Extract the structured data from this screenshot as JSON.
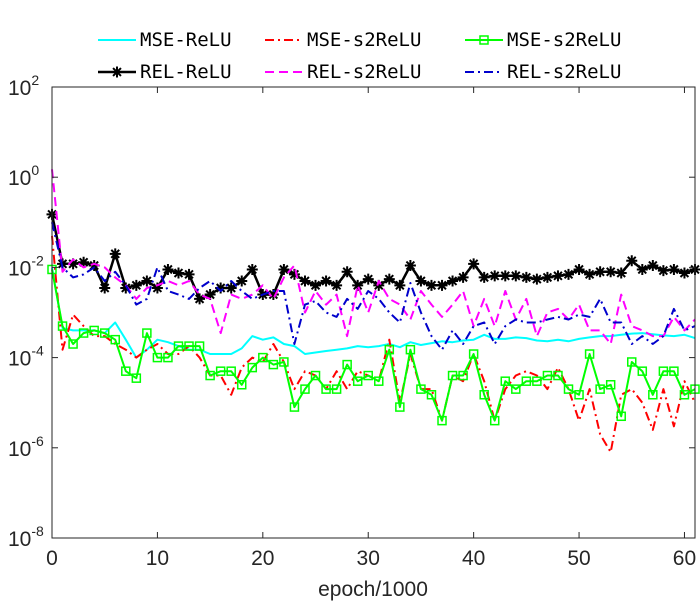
{
  "chart_data": {
    "type": "line",
    "xlabel": "epoch/1000",
    "ylabel": "",
    "yscale": "log",
    "xlim": [
      0,
      61
    ],
    "ylim": [
      1e-08,
      100
    ],
    "xticks": [
      "0",
      "10",
      "20",
      "30",
      "40",
      "50",
      "60"
    ],
    "yticks": [
      {
        "base": "10",
        "exp": "2"
      },
      {
        "base": "10",
        "exp": "0"
      },
      {
        "base": "10",
        "exp": "-2"
      },
      {
        "base": "10",
        "exp": "-4"
      },
      {
        "base": "10",
        "exp": "-6"
      },
      {
        "base": "10",
        "exp": "-8"
      }
    ],
    "legend_position": "top",
    "series": [
      {
        "name": "MSE-ReLU",
        "color": "#00ffff",
        "style": "solid",
        "marker": "none",
        "x": [
          0,
          1,
          2,
          3,
          4,
          5,
          6,
          7,
          8,
          9,
          10,
          11,
          12,
          13,
          14,
          15,
          16,
          17,
          18,
          19,
          20,
          21,
          22,
          23,
          24,
          25,
          26,
          27,
          28,
          29,
          30,
          31,
          32,
          33,
          34,
          35,
          36,
          37,
          38,
          39,
          40,
          41,
          42,
          43,
          44,
          45,
          46,
          47,
          48,
          49,
          50,
          51,
          52,
          53,
          54,
          55,
          56,
          57,
          58,
          59,
          60,
          61
        ],
        "values": [
          0.01,
          0.00045,
          0.0004,
          0.0004,
          0.0004,
          0.00035,
          0.0006,
          0.00025,
          0.0001,
          0.00015,
          0.00025,
          0.00022,
          0.00018,
          0.00015,
          0.00015,
          0.00012,
          0.00012,
          0.00012,
          0.00016,
          0.0003,
          0.00025,
          0.00028,
          0.0002,
          0.00018,
          0.00012,
          0.00013,
          0.00014,
          0.00015,
          0.00016,
          0.00018,
          0.00017,
          0.00018,
          0.0002,
          0.00017,
          0.00022,
          0.00019,
          0.00021,
          0.00023,
          0.00022,
          0.00024,
          0.00025,
          0.00032,
          0.00026,
          0.00026,
          0.00028,
          0.00027,
          0.00024,
          0.00023,
          0.00025,
          0.00023,
          0.00026,
          0.00028,
          0.0003,
          0.0003,
          0.00032,
          0.00034,
          0.00035,
          0.00033,
          0.00031,
          0.0003,
          0.00032,
          0.00027
        ]
      },
      {
        "name": "MSE-s2ReLU",
        "color": "#ff0000",
        "style": "dashdot",
        "marker": "none",
        "x": [
          0,
          1,
          2,
          3,
          4,
          5,
          6,
          7,
          8,
          9,
          10,
          11,
          12,
          13,
          14,
          15,
          16,
          17,
          18,
          19,
          20,
          21,
          22,
          23,
          24,
          25,
          26,
          27,
          28,
          29,
          30,
          31,
          32,
          33,
          34,
          35,
          36,
          37,
          38,
          39,
          40,
          41,
          42,
          43,
          44,
          45,
          46,
          47,
          48,
          49,
          50,
          51,
          52,
          53,
          54,
          55,
          56,
          57,
          58,
          59,
          60,
          61
        ],
        "values": [
          0.05,
          0.00015,
          0.0009,
          0.0005,
          0.0003,
          0.0003,
          0.0002,
          0.00015,
          0.0001,
          0.00015,
          0.0002,
          0.00012,
          0.00012,
          0.00018,
          0.0001,
          4e-05,
          4e-05,
          1.5e-05,
          6e-05,
          0.0001,
          8e-05,
          0.0002,
          8e-05,
          2e-05,
          5e-05,
          4e-05,
          2e-05,
          5e-05,
          2e-05,
          5e-05,
          4e-05,
          3e-05,
          0.00025,
          1e-05,
          0.00012,
          2e-05,
          2e-05,
          4e-06,
          4e-05,
          3e-05,
          0.00012,
          3e-05,
          4e-06,
          2e-05,
          4e-05,
          5e-05,
          4e-05,
          2e-05,
          6e-05,
          2e-05,
          4e-06,
          2e-05,
          2e-06,
          8e-07,
          1.5e-05,
          2e-05,
          1e-05,
          2.5e-06,
          2e-05,
          3e-06,
          3e-05,
          1e-05
        ]
      },
      {
        "name": "MSE-s2ReLU",
        "color": "#00ff00",
        "style": "solid",
        "marker": "square",
        "x": [
          0,
          1,
          2,
          3,
          4,
          5,
          6,
          7,
          8,
          9,
          10,
          11,
          12,
          13,
          14,
          15,
          16,
          17,
          18,
          19,
          20,
          21,
          22,
          23,
          24,
          25,
          26,
          27,
          28,
          29,
          30,
          31,
          32,
          33,
          34,
          35,
          36,
          37,
          38,
          39,
          40,
          41,
          42,
          43,
          44,
          45,
          46,
          47,
          48,
          49,
          50,
          51,
          52,
          53,
          54,
          55,
          56,
          57,
          58,
          59,
          60,
          61
        ],
        "values": [
          0.009,
          0.0005,
          0.0002,
          0.00035,
          0.0004,
          0.00035,
          0.00025,
          5e-05,
          3.5e-05,
          0.00035,
          0.0001,
          0.0001,
          0.00018,
          0.00018,
          0.00018,
          4e-05,
          5e-05,
          5e-05,
          2.5e-05,
          6e-05,
          0.0001,
          7e-05,
          8e-05,
          8e-06,
          2e-05,
          4e-05,
          2e-05,
          2e-05,
          7e-05,
          3e-05,
          4e-05,
          3e-05,
          0.00015,
          8e-06,
          0.00015,
          2e-05,
          1.5e-05,
          4e-06,
          4e-05,
          4e-05,
          0.00012,
          1.5e-05,
          4e-06,
          3e-05,
          2e-05,
          3e-05,
          3e-05,
          4e-05,
          4e-05,
          2e-05,
          1.5e-05,
          0.00012,
          2e-05,
          2.5e-05,
          5e-06,
          8e-05,
          5e-05,
          1.5e-05,
          5e-05,
          5e-05,
          1.5e-05,
          2e-05
        ]
      },
      {
        "name": "REL-ReLU",
        "color": "#000000",
        "style": "solid",
        "marker": "star",
        "x": [
          0,
          1,
          2,
          3,
          4,
          5,
          6,
          7,
          8,
          9,
          10,
          11,
          12,
          13,
          14,
          15,
          16,
          17,
          18,
          19,
          20,
          21,
          22,
          23,
          24,
          25,
          26,
          27,
          28,
          29,
          30,
          31,
          32,
          33,
          34,
          35,
          36,
          37,
          38,
          39,
          40,
          41,
          42,
          43,
          44,
          45,
          46,
          47,
          48,
          49,
          50,
          51,
          52,
          53,
          54,
          55,
          56,
          57,
          58,
          59,
          60,
          61
        ],
        "values": [
          0.15,
          0.012,
          0.012,
          0.013,
          0.011,
          0.0035,
          0.02,
          0.0035,
          0.004,
          0.005,
          0.0035,
          0.009,
          0.0075,
          0.007,
          0.002,
          0.0025,
          0.0035,
          0.0035,
          0.005,
          0.009,
          0.0025,
          0.0025,
          0.009,
          0.007,
          0.005,
          0.004,
          0.005,
          0.004,
          0.008,
          0.004,
          0.0055,
          0.004,
          0.0055,
          0.004,
          0.011,
          0.005,
          0.004,
          0.004,
          0.005,
          0.006,
          0.012,
          0.006,
          0.0065,
          0.0065,
          0.0065,
          0.006,
          0.0055,
          0.006,
          0.0065,
          0.007,
          0.009,
          0.007,
          0.008,
          0.008,
          0.0075,
          0.014,
          0.009,
          0.011,
          0.0085,
          0.009,
          0.0075,
          0.009
        ]
      },
      {
        "name": "REL-s2ReLU",
        "color": "#ff00ff",
        "style": "dashed",
        "marker": "none",
        "x": [
          0,
          1,
          2,
          3,
          4,
          5,
          6,
          7,
          8,
          9,
          10,
          11,
          12,
          13,
          14,
          15,
          16,
          17,
          18,
          19,
          20,
          21,
          22,
          23,
          24,
          25,
          26,
          27,
          28,
          29,
          30,
          31,
          32,
          33,
          34,
          35,
          36,
          37,
          38,
          39,
          40,
          41,
          42,
          43,
          44,
          45,
          46,
          47,
          48,
          49,
          50,
          51,
          52,
          53,
          54,
          55,
          56,
          57,
          58,
          59,
          60,
          61
        ],
        "values": [
          1.5,
          0.008,
          0.015,
          0.01,
          0.012,
          0.01,
          0.006,
          0.004,
          0.002,
          0.0035,
          0.004,
          0.005,
          0.004,
          0.005,
          0.0025,
          0.002,
          0.00035,
          0.0025,
          0.002,
          0.0025,
          0.004,
          0.002,
          0.006,
          0.011,
          0.001,
          0.003,
          0.0015,
          0.0025,
          0.0003,
          0.004,
          0.001,
          0.005,
          0.002,
          0.0015,
          0.0007,
          0.003,
          0.0015,
          0.0008,
          0.0015,
          0.003,
          0.0005,
          0.002,
          0.0005,
          0.003,
          0.0007,
          0.002,
          0.0003,
          0.001,
          0.0012,
          0.0007,
          0.0015,
          0.0004,
          0.0004,
          0.0002,
          0.0025,
          0.0005,
          0.0004,
          0.0003,
          0.0003,
          0.0008,
          0.0004,
          0.0007
        ]
      },
      {
        "name": "REL-s2ReLU",
        "color": "#0000cc",
        "style": "dashdot",
        "marker": "none",
        "x": [
          0,
          1,
          2,
          3,
          4,
          5,
          6,
          7,
          8,
          9,
          10,
          11,
          12,
          13,
          14,
          15,
          16,
          17,
          18,
          19,
          20,
          21,
          22,
          23,
          24,
          25,
          26,
          27,
          28,
          29,
          30,
          31,
          32,
          33,
          34,
          35,
          36,
          37,
          38,
          39,
          40,
          41,
          42,
          43,
          44,
          45,
          46,
          47,
          48,
          49,
          50,
          51,
          52,
          53,
          54,
          55,
          56,
          57,
          58,
          59,
          60,
          61
        ],
        "values": [
          0.1,
          0.01,
          0.006,
          0.007,
          0.01,
          0.005,
          0.008,
          0.004,
          0.0015,
          0.002,
          0.01,
          0.003,
          0.0025,
          0.002,
          0.0035,
          0.005,
          0.003,
          0.005,
          0.003,
          0.002,
          0.0025,
          0.003,
          0.003,
          0.0002,
          0.0015,
          0.0018,
          0.001,
          0.0008,
          0.002,
          0.0012,
          0.003,
          0.002,
          0.001,
          0.0006,
          0.0045,
          0.001,
          0.0003,
          0.00015,
          0.0004,
          0.0002,
          0.0005,
          0.0006,
          0.0002,
          0.0005,
          0.0007,
          0.0006,
          0.0006,
          0.0007,
          0.0008,
          0.0007,
          0.0009,
          0.0008,
          0.002,
          0.0006,
          0.0006,
          0.0002,
          0.0003,
          0.0002,
          0.0003,
          0.0012,
          0.0004,
          0.0005
        ]
      }
    ]
  }
}
